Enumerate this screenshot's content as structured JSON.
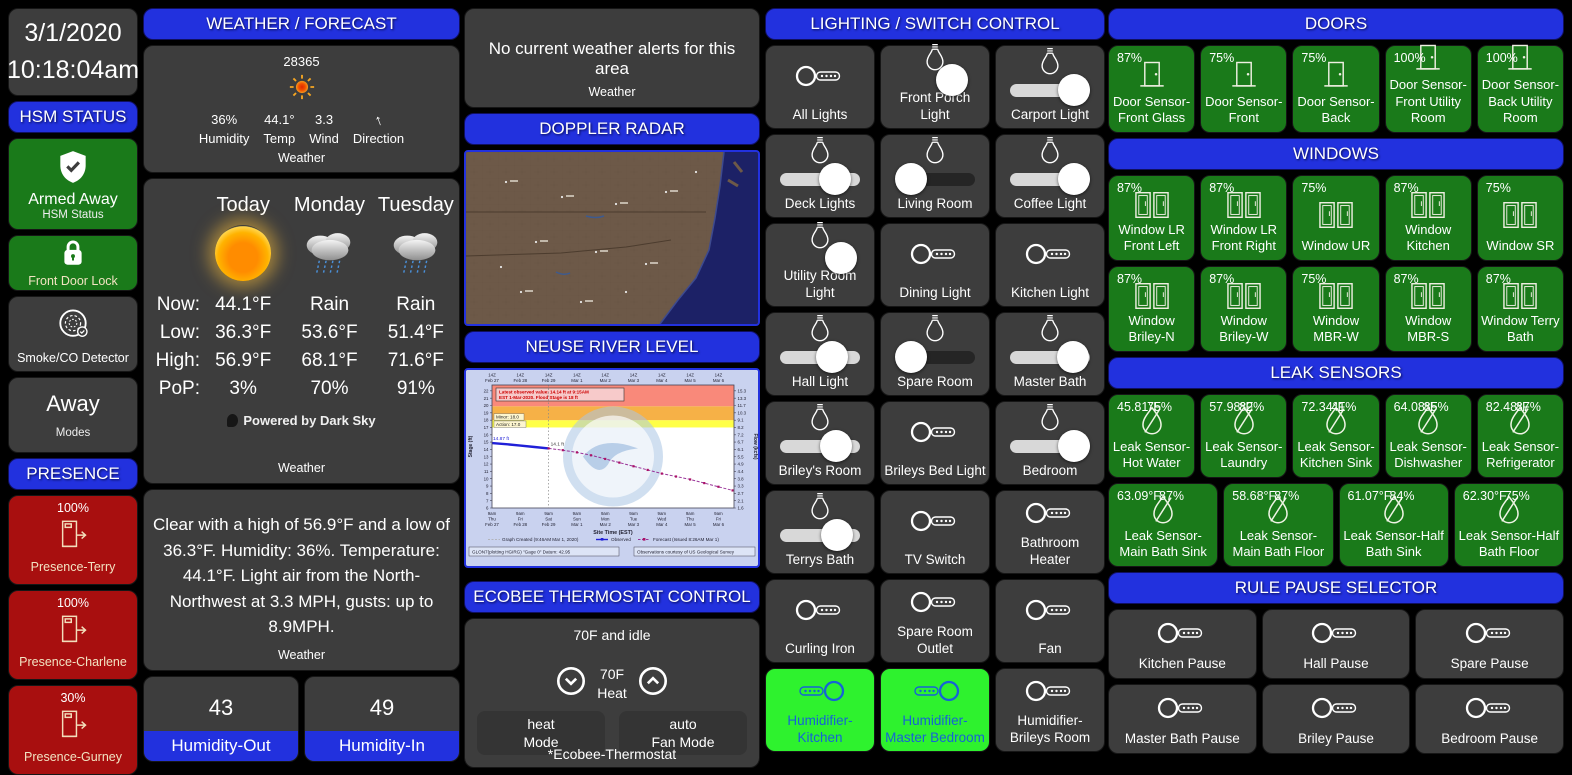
{
  "colors": {
    "header_blue": "#2231DE",
    "tile_gray": "#3D3D3D",
    "sensor_green": "#1A7A1A",
    "alert_red": "#A80F0F",
    "active_green": "#2EF22E",
    "humidifier_blue": "#1663D6"
  },
  "clock": {
    "date": "3/1/2020",
    "time": "10:18:04am"
  },
  "security": {
    "hsm_header": "HSM STATUS",
    "armed_label": "Armed Away",
    "armed_sub": "HSM Status",
    "lock_label": "Front Door Lock",
    "smoke_label": "Smoke/CO Detector",
    "mode_value": "Away",
    "mode_label": "Modes"
  },
  "presence": {
    "header": "PRESENCE",
    "tiles": [
      {
        "battery": "100%",
        "label": "Presence-Terry"
      },
      {
        "battery": "100%",
        "label": "Presence-Charlene"
      },
      {
        "battery": "30%",
        "label": "Presence-Gurney"
      }
    ]
  },
  "weather": {
    "header": "WEATHER / FORECAST",
    "station": "28365",
    "direction_glyph": "↑",
    "direction_label": "Direction",
    "footer": "Weather",
    "stats": [
      {
        "value": "36%",
        "label": "Humidity"
      },
      {
        "value": "44.1°",
        "label": "Temp"
      },
      {
        "value": "3.3",
        "label": "Wind"
      }
    ]
  },
  "forecast": {
    "days": [
      "Today",
      "Monday",
      "Tuesday"
    ],
    "rows": [
      {
        "label": "Now:",
        "values": [
          "44.1°F",
          "Rain",
          "Rain"
        ]
      },
      {
        "label": "Low:",
        "values": [
          "36.3°F",
          "53.6°F",
          "51.4°F"
        ]
      },
      {
        "label": "High:",
        "values": [
          "56.9°F",
          "68.1°F",
          "71.6°F"
        ]
      },
      {
        "label": "PoP:",
        "values": [
          "3%",
          "70%",
          "91%"
        ]
      }
    ],
    "powered": "Powered by Dark Sky",
    "footer": "Weather"
  },
  "summary": {
    "text": "Clear with a high of 56.9°F and a low of 36.3°F. Humidity: 36%. Temperature: 44.1°F. Light air from the North-Northwest at 3.3 MPH, gusts: up to 8.9MPH.",
    "footer": "Weather"
  },
  "humidity": {
    "out": {
      "value": "43",
      "label": "Humidity-Out"
    },
    "in": {
      "value": "49",
      "label": "Humidity-In"
    }
  },
  "alerts": {
    "text": "No current weather alerts for this area",
    "footer": "Weather"
  },
  "radar": {
    "header": "DOPPLER RADAR"
  },
  "river": {
    "header": "NEUSE RIVER LEVEL"
  },
  "ecobee": {
    "header": "ECOBEE THERMOSTAT CONTROL",
    "status": "70F and idle",
    "setpoint": "70F",
    "setpoint_label": "Heat",
    "mode_value": "heat",
    "mode_label": "Mode",
    "fan_value": "auto",
    "fan_label": "Fan Mode",
    "footer": "*Ecobee-Thermostat"
  },
  "lighting": {
    "header": "LIGHTING / SWITCH CONTROL",
    "tiles": [
      {
        "label": "All Lights",
        "control": "toggle",
        "state": "off"
      },
      {
        "label": "Front Porch Light",
        "control": "dimmer",
        "state": "on",
        "level": 75
      },
      {
        "label": "Carport Light",
        "control": "dimmer",
        "state": "on",
        "level": 88
      },
      {
        "label": "Deck Lights",
        "control": "dimmer",
        "state": "on",
        "level": 70
      },
      {
        "label": "Living Room",
        "control": "dimmer",
        "state": "off",
        "level": 0
      },
      {
        "label": "Coffee Light",
        "control": "dimmer",
        "state": "on",
        "level": 88
      },
      {
        "label": "Utility Room Light",
        "control": "dimmer",
        "state": "on",
        "level": 82
      },
      {
        "label": "Dining Light",
        "control": "toggle",
        "state": "off"
      },
      {
        "label": "Kitchen Light",
        "control": "toggle",
        "state": "off"
      },
      {
        "label": "Hall Light",
        "control": "dimmer",
        "state": "on",
        "level": 65
      },
      {
        "label": "Spare Room",
        "control": "dimmer",
        "state": "off",
        "level": 0
      },
      {
        "label": "Master Bath",
        "control": "dimmer",
        "state": "on",
        "level": 85
      },
      {
        "label": "Briley's Room",
        "control": "dimmer",
        "state": "on",
        "level": 72
      },
      {
        "label": "Brileys Bed Light",
        "control": "toggle",
        "state": "off"
      },
      {
        "label": "Bedroom",
        "control": "dimmer",
        "state": "on",
        "level": 88
      },
      {
        "label": "Terrys Bath",
        "control": "dimmer",
        "state": "on",
        "level": 75
      },
      {
        "label": "TV Switch",
        "control": "toggle",
        "state": "off"
      },
      {
        "label": "Bathroom Heater",
        "control": "toggle",
        "state": "off"
      },
      {
        "label": "Curling Iron",
        "control": "toggle",
        "state": "off"
      },
      {
        "label": "Spare Room Outlet",
        "control": "toggle",
        "state": "off"
      },
      {
        "label": "Fan",
        "control": "toggle",
        "state": "off"
      },
      {
        "label": "Humidifier-Kitchen",
        "control": "toggle",
        "state": "on"
      },
      {
        "label": "Humidifier-Master Bedroom",
        "control": "toggle",
        "state": "on"
      },
      {
        "label": "Humidifier-Brileys Room",
        "control": "toggle",
        "state": "off"
      }
    ]
  },
  "doors": {
    "header": "DOORS",
    "tiles": [
      {
        "battery": "87%",
        "label": "Door Sensor-Front Glass"
      },
      {
        "battery": "75%",
        "label": "Door Sensor-Front"
      },
      {
        "battery": "75%",
        "label": "Door Sensor-Back"
      },
      {
        "battery": "100%",
        "label": "Door Sensor-Front Utility Room"
      },
      {
        "battery": "100%",
        "label": "Door Sensor-Back Utility Room"
      }
    ]
  },
  "windows": {
    "header": "WINDOWS",
    "tiles": [
      {
        "battery": "87%",
        "label": "Window LR Front Left"
      },
      {
        "battery": "87%",
        "label": "Window LR Front Right"
      },
      {
        "battery": "75%",
        "label": "Window UR"
      },
      {
        "battery": "87%",
        "label": "Window Kitchen"
      },
      {
        "battery": "75%",
        "label": "Window SR"
      },
      {
        "battery": "87%",
        "label": "Window Briley-N"
      },
      {
        "battery": "87%",
        "label": "Window Briley-W"
      },
      {
        "battery": "75%",
        "label": "Window MBR-W"
      },
      {
        "battery": "87%",
        "label": "Window MBR-S"
      },
      {
        "battery": "87%",
        "label": "Window Terry Bath"
      }
    ]
  },
  "leaks": {
    "header": "LEAK SENSORS",
    "row1": [
      {
        "temp": "45.81°F",
        "battery": "75%",
        "label": "Leak Sensor-Hot Water"
      },
      {
        "temp": "57.98°F",
        "battery": "82%",
        "label": "Leak Sensor-Laundry"
      },
      {
        "temp": "72.34°F",
        "battery": "41%",
        "label": "Leak Sensor-Kitchen Sink"
      },
      {
        "temp": "64.08°F",
        "battery": "85%",
        "label": "Leak Sensor-Dishwasher"
      },
      {
        "temp": "82.48°F",
        "battery": "87%",
        "label": "Leak Sensor-Refrigerator"
      }
    ],
    "row2": [
      {
        "temp": "63.09°F",
        "battery": "87%",
        "label": "Leak Sensor-Main Bath Sink"
      },
      {
        "temp": "58.68°F",
        "battery": "87%",
        "label": "Leak Sensor-Main Bath Floor"
      },
      {
        "temp": "61.07°F",
        "battery": "84%",
        "label": "Leak Sensor-Half Bath Sink"
      },
      {
        "temp": "62.30°F",
        "battery": "75%",
        "label": "Leak Sensor-Half Bath Floor"
      }
    ]
  },
  "pauses": {
    "header": "RULE PAUSE SELECTOR",
    "tiles": [
      "Kitchen Pause",
      "Hall Pause",
      "Spare Pause",
      "Master Bath Pause",
      "Briley Pause",
      "Bedroom Pause"
    ]
  },
  "chart_data": {
    "type": "line",
    "title": "NEUSE RIVER LEVEL",
    "xlabel": "Site Time (EST)",
    "ylabel_left": "Stage (ft)",
    "ylabel_right": "Flow (kcfs)",
    "stage_range": [
      6,
      22.8
    ],
    "z_label": "14Z",
    "dates": [
      "Feb 27",
      "Feb 28",
      "Feb 29",
      "Mar 1",
      "Mar 2",
      "Mar 3",
      "Mar 4",
      "Mar 5",
      "Mar 6"
    ],
    "bottom_time": "9am",
    "days": [
      "Thu",
      "Fri",
      "Sat",
      "Sun",
      "Mon",
      "Tue",
      "Wed",
      "Thu",
      "Fri"
    ],
    "left_ticks": [
      22,
      21,
      20,
      19,
      18,
      17,
      16,
      15,
      14,
      13,
      12,
      11,
      10,
      9,
      8,
      7,
      6
    ],
    "right_ticks": [
      "15.3",
      "13.3",
      "11.7",
      "10.3",
      "9.1",
      "8.2",
      "7.2",
      "6.7",
      "6.1",
      "5.5",
      "4.9",
      "4.4",
      "3.8",
      "3.3",
      "2.7",
      "2.1",
      "1.6"
    ],
    "annotation_line1": "Latest observed value: 14.14 ft at 9:15AM",
    "annotation_line2": "EST 1-Mar-2020. Flood Stage is 18 ft",
    "minor_label": "Minor: 18.0",
    "action_label": "Action: 17.0",
    "obs_start_label": "14.87 ft",
    "obs_current_label": "14.1 ft",
    "flood_bands": {
      "action": [
        17,
        18
      ],
      "minor": [
        18,
        19.9
      ],
      "major": [
        19.9,
        22.8
      ]
    },
    "observed": {
      "x_days": [
        0,
        0.5,
        1,
        1.5,
        2
      ],
      "stage_ft": [
        14.87,
        14.72,
        14.52,
        14.33,
        14.14
      ]
    },
    "forecast": {
      "x_days": [
        2,
        2.5,
        3,
        3.5,
        4,
        4.5,
        5,
        5.5,
        6,
        6.5,
        7,
        7.5,
        8,
        8.5
      ],
      "stage_ft": [
        14.14,
        13.9,
        13.6,
        13.2,
        12.7,
        12.2,
        11.7,
        11.2,
        10.7,
        10.3,
        9.9,
        9.4,
        8.9,
        8.4
      ]
    },
    "legend": {
      "created": "Graph Created (9:46AM Mar 1, 2020)",
      "observed": "Observed",
      "forecast": "Forecast (Issued 8:26AM Mar 1)"
    },
    "footer_left": "GLON7(plotting HGIRG) \"Gage 0\" Datum: 42.95",
    "footer_right": "Observations courtesy of US Geological Survey"
  }
}
